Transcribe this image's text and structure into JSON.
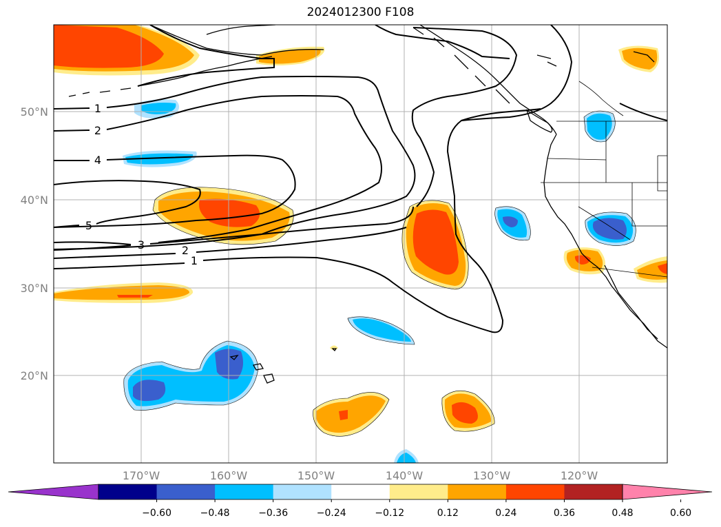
{
  "title": "2024012300 F108",
  "map": {
    "lat_labels": [
      "50°N",
      "40°N",
      "30°N",
      "20°N"
    ],
    "lon_labels": [
      "170°W",
      "160°W",
      "150°W",
      "140°W",
      "130°W",
      "120°W"
    ],
    "contour_labels": [
      "1",
      "2",
      "4",
      "5",
      "3",
      "2",
      "1"
    ]
  },
  "colorbar": {
    "labels": [
      "−0.60",
      "−0.48",
      "−0.36",
      "−0.24",
      "−0.12",
      "0.12",
      "0.24",
      "0.36",
      "0.48",
      "0.60"
    ],
    "colors": [
      "#9933cc",
      "#00008b",
      "#3a5fcd",
      "#00bfff",
      "#b0e2ff",
      "#ffffff",
      "#ffec8b",
      "#ffa500",
      "#ff4500",
      "#b22222",
      "#ff82ab"
    ]
  }
}
